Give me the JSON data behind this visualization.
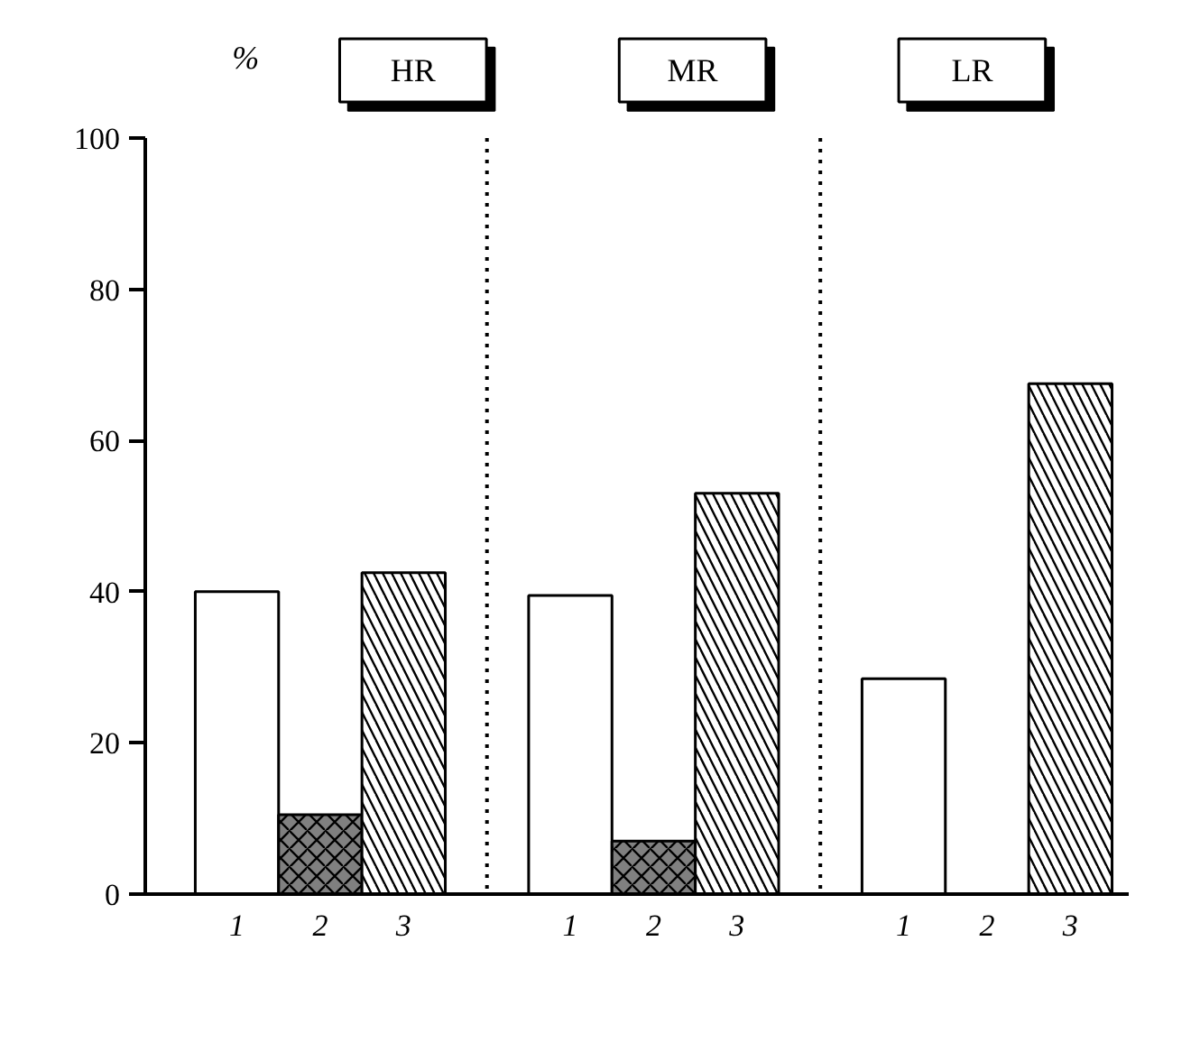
{
  "chart_data": {
    "type": "bar",
    "ylabel": "%",
    "categories": [
      "1",
      "2",
      "3",
      null,
      "1",
      "2",
      "3",
      null,
      "1",
      "2",
      "3"
    ],
    "series": [
      {
        "color": "#ffffff",
        "values": [
          40,
          null,
          null,
          null,
          39.5,
          null,
          null,
          null,
          28.5,
          null,
          null
        ]
      },
      {
        "color": "#808080",
        "values": [
          null,
          10.5,
          null,
          null,
          null,
          7,
          null,
          null,
          null,
          0,
          null
        ]
      },
      {
        "color": "#ffffff",
        "values": [
          null,
          null,
          42.5,
          null,
          null,
          null,
          53,
          null,
          null,
          null,
          67.5
        ]
      }
    ],
    "ylim": [
      0,
      100
    ],
    "yticks": [
      0,
      20,
      40,
      60,
      80,
      100
    ],
    "annotations": [
      "HR",
      "MR",
      "LR"
    ]
  }
}
